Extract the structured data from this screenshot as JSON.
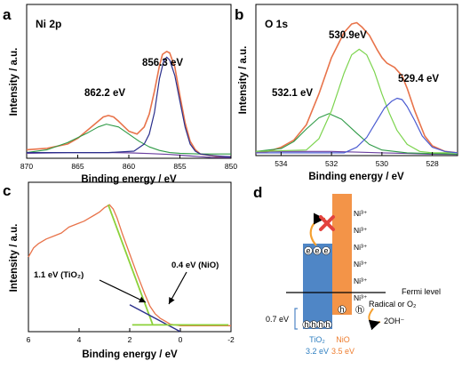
{
  "colors": {
    "measured": "#e8734a",
    "fit": "#ff6a3d",
    "background": "#6a3fa0",
    "comp_green": "#2e9a46",
    "comp_navy": "#2b2f8c",
    "comp_lime": "#7cd44e",
    "comp_blue": "#4a5bd1",
    "vb_line": "#8cd13a",
    "tio2_bar": "#4f86c6",
    "nio_bar": "#f39448",
    "cross": "#e3433e",
    "tio2_text": "#2f7fc1",
    "nio_text": "#ee7d2f"
  },
  "chart_data": [
    {
      "panel": "a",
      "type": "line",
      "title": "Ni 2p",
      "xlabel": "Binding energy / eV",
      "ylabel": "Intensity / a.u.",
      "xlim": [
        870,
        850
      ],
      "ylim": [
        0,
        1.08
      ],
      "xticks": [
        870,
        865,
        860,
        855,
        850
      ],
      "grid": false,
      "annotations": [
        {
          "text": "856.3 eV",
          "x": 856.3,
          "y": 0.86
        },
        {
          "text": "862.2 eV",
          "x": 862.2,
          "y": 0.58
        }
      ],
      "series": [
        {
          "role": "measured",
          "x": [
            870,
            868,
            866,
            865,
            864,
            863,
            862.5,
            862,
            861.5,
            861,
            860,
            859.2,
            858.5,
            858,
            857.5,
            857,
            856.7,
            856.3,
            856,
            855.5,
            855,
            854.5,
            854,
            853.5,
            853,
            852,
            851,
            850
          ],
          "y": [
            0.06,
            0.07,
            0.1,
            0.14,
            0.2,
            0.26,
            0.29,
            0.3,
            0.29,
            0.26,
            0.19,
            0.17,
            0.22,
            0.31,
            0.47,
            0.65,
            0.73,
            0.75,
            0.74,
            0.64,
            0.44,
            0.25,
            0.12,
            0.06,
            0.03,
            0.02,
            0.01,
            0.01
          ]
        },
        {
          "role": "background",
          "x": [
            870,
            866,
            862,
            860,
            858,
            856,
            855,
            854,
            853,
            852,
            850
          ],
          "y": [
            0.035,
            0.04,
            0.04,
            0.038,
            0.033,
            0.027,
            0.022,
            0.016,
            0.011,
            0.006,
            0.005
          ]
        },
        {
          "role": "component",
          "x": [
            870,
            868,
            866,
            864,
            863,
            862.2,
            861,
            860,
            859,
            858,
            857,
            856,
            855,
            853,
            850
          ],
          "y": [
            0.04,
            0.06,
            0.11,
            0.18,
            0.22,
            0.24,
            0.22,
            0.17,
            0.12,
            0.08,
            0.055,
            0.04,
            0.035,
            0.03,
            0.03
          ]
        },
        {
          "role": "component",
          "x": [
            870,
            862,
            859.5,
            858.5,
            858,
            857.5,
            857,
            856.6,
            856.3,
            856,
            855.5,
            855,
            854.5,
            854,
            853.5,
            853,
            852,
            850
          ],
          "y": [
            0.04,
            0.04,
            0.05,
            0.1,
            0.17,
            0.32,
            0.56,
            0.68,
            0.71,
            0.69,
            0.58,
            0.4,
            0.22,
            0.1,
            0.05,
            0.03,
            0.02,
            0.01
          ]
        }
      ]
    },
    {
      "panel": "b",
      "type": "line",
      "title": "O 1s",
      "xlabel": "Binding energy / eV",
      "ylabel": "Intensity / a.u.",
      "xlim": [
        535,
        527
      ],
      "ylim": [
        0,
        1.08
      ],
      "xticks": [
        534,
        532,
        530,
        528
      ],
      "grid": false,
      "annotations": [
        {
          "text": "530.9eV",
          "x": 530.9,
          "y": 0.98
        },
        {
          "text": "529.4 eV",
          "x": 529.4,
          "y": 0.6
        },
        {
          "text": "532.1 eV",
          "x": 532.1,
          "y": 0.48
        }
      ],
      "series": [
        {
          "role": "measured",
          "x": [
            535,
            534.5,
            534,
            533.5,
            533,
            532.5,
            532,
            531.5,
            531.2,
            531,
            530.8,
            530.5,
            530.2,
            530,
            529.8,
            529.5,
            529.2,
            529,
            528.7,
            528.3,
            528,
            527.5,
            527
          ],
          "y": [
            0.02,
            0.03,
            0.06,
            0.11,
            0.22,
            0.44,
            0.7,
            0.88,
            0.94,
            0.95,
            0.92,
            0.86,
            0.76,
            0.7,
            0.66,
            0.63,
            0.57,
            0.48,
            0.32,
            0.14,
            0.07,
            0.03,
            0.02
          ]
        },
        {
          "role": "background",
          "x": [
            535,
            533,
            532,
            531,
            530,
            529,
            528,
            527
          ],
          "y": [
            0.03,
            0.03,
            0.03,
            0.025,
            0.02,
            0.015,
            0.01,
            0.008
          ]
        },
        {
          "role": "component",
          "x": [
            535,
            534,
            533.5,
            533,
            532.5,
            532.1,
            531.6,
            531,
            530.5,
            530,
            529,
            527
          ],
          "y": [
            0.03,
            0.05,
            0.1,
            0.19,
            0.27,
            0.3,
            0.26,
            0.16,
            0.08,
            0.04,
            0.02,
            0.01
          ]
        },
        {
          "role": "component",
          "x": [
            535,
            533,
            532.5,
            532,
            531.5,
            531.2,
            530.9,
            530.6,
            530.3,
            530,
            529.7,
            529.4,
            529,
            528.5,
            528,
            527
          ],
          "y": [
            0.03,
            0.04,
            0.12,
            0.32,
            0.59,
            0.72,
            0.76,
            0.72,
            0.6,
            0.44,
            0.3,
            0.18,
            0.08,
            0.03,
            0.02,
            0.02
          ]
        },
        {
          "role": "component",
          "x": [
            535,
            531.5,
            531,
            530.6,
            530.2,
            529.9,
            529.6,
            529.4,
            529.2,
            529,
            528.7,
            528.4,
            528,
            527.5,
            527
          ],
          "y": [
            0.02,
            0.02,
            0.06,
            0.13,
            0.25,
            0.34,
            0.39,
            0.41,
            0.4,
            0.35,
            0.25,
            0.14,
            0.06,
            0.03,
            0.02
          ]
        }
      ]
    },
    {
      "panel": "c",
      "type": "line",
      "title": "",
      "xlabel": "Binding energy / eV",
      "ylabel": "Intensity / a.u.",
      "xlim": [
        6,
        -2
      ],
      "ylim": [
        0,
        1
      ],
      "xticks": [
        6,
        4,
        2,
        0,
        -2
      ],
      "grid": false,
      "annotations": [
        {
          "text": "1.1 eV (TiO₂)",
          "x": 1.1
        },
        {
          "text": "0.4 eV (NiO)",
          "x": 0.4
        }
      ],
      "series": [
        {
          "role": "measured",
          "x": [
            6,
            5.8,
            5.6,
            5.3,
            5.0,
            4.7,
            4.4,
            4.1,
            3.8,
            3.6,
            3.4,
            3.2,
            3.0,
            2.9,
            2.8,
            2.65,
            2.5,
            2.3,
            2.0,
            1.7,
            1.4,
            1.2,
            1.0,
            0.8,
            0.6,
            0.4,
            0.2,
            0,
            -0.3,
            -0.6,
            -1.0,
            -1.5,
            -2.0
          ],
          "y": [
            0.5,
            0.56,
            0.59,
            0.62,
            0.64,
            0.66,
            0.7,
            0.72,
            0.74,
            0.76,
            0.78,
            0.8,
            0.83,
            0.84,
            0.85,
            0.82,
            0.76,
            0.66,
            0.52,
            0.38,
            0.25,
            0.17,
            0.12,
            0.09,
            0.07,
            0.05,
            0.045,
            0.04,
            0.04,
            0.04,
            0.04,
            0.04,
            0.04
          ]
        },
        {
          "role": "fit",
          "x": [
            2.85,
            1.1
          ],
          "y": [
            0.85,
            0.05
          ]
        },
        {
          "role": "fit",
          "x": [
            2.0,
            0.0
          ],
          "y": [
            0.18,
            0.0
          ]
        },
        {
          "role": "baseline",
          "x": [
            1.9,
            -1.9
          ],
          "y": [
            0.045,
            0.045
          ]
        }
      ]
    }
  ],
  "panels": {
    "a": {
      "label": "a"
    },
    "b": {
      "label": "b"
    },
    "c": {
      "label": "c"
    },
    "d": {
      "label": "d"
    }
  },
  "diagram": {
    "ni_labels": [
      "Ni³⁺",
      "Ni³⁺",
      "Ni³⁺",
      "Ni³⁺",
      "Ni³⁺",
      "Ni³⁺"
    ],
    "electron": "e",
    "hole": "h",
    "fermi_level": "Fermi level",
    "radical": "Radical or O₂",
    "oh": "2OH⁻",
    "offset": "0.7 eV",
    "tio2_name": "TiO₂",
    "tio2_gap": "3.2 eV",
    "nio_name": "NiO",
    "nio_gap": "3.5 eV"
  }
}
